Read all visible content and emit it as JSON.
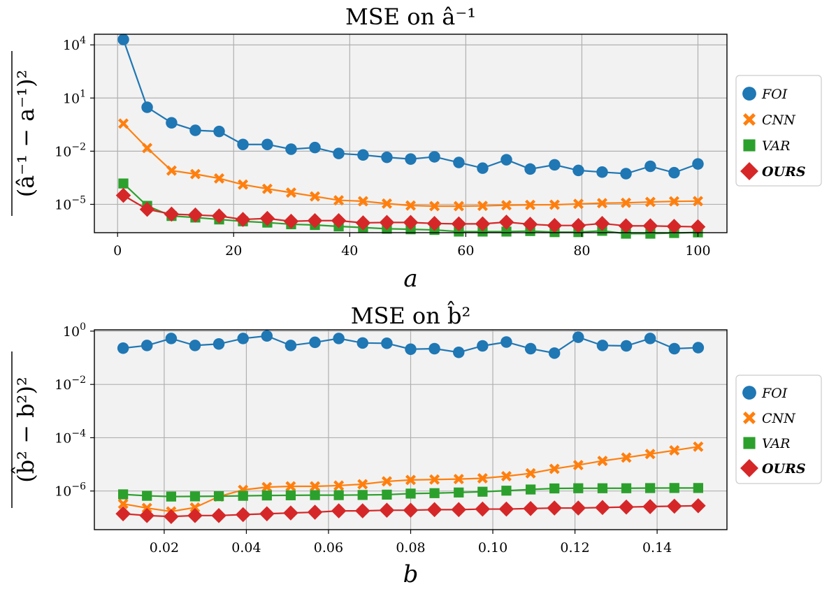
{
  "chart_data": [
    {
      "type": "line",
      "title": "MSE on â⁻¹",
      "ylabel": "(â⁻¹ − a⁻¹)²",
      "xlabel": "a",
      "xlim": [
        -4,
        105
      ],
      "ylim_exp": [
        -6.6,
        4.6
      ],
      "yscale": "log",
      "grid": true,
      "legend_position": "right",
      "xticks": [
        0,
        20,
        40,
        60,
        80,
        100
      ],
      "xtick_labels": [
        "0",
        "20",
        "40",
        "60",
        "80",
        "100"
      ],
      "ytick_exps": [
        4,
        1,
        -2,
        -5
      ],
      "ytick_labels": [
        {
          "base": "10",
          "exp": "4"
        },
        {
          "base": "10",
          "exp": "1"
        },
        {
          "base": "10",
          "exp": "−2"
        },
        {
          "base": "10",
          "exp": "−5"
        }
      ],
      "x": [
        1,
        5.1,
        9.3,
        13.4,
        17.5,
        21.6,
        25.8,
        29.9,
        34,
        38.1,
        42.3,
        46.4,
        50.5,
        54.6,
        58.8,
        62.9,
        67,
        71.1,
        75.3,
        79.4,
        83.5,
        87.6,
        91.8,
        95.9,
        100
      ],
      "series": [
        {
          "name": "FOI",
          "color": "#1f77b4",
          "marker": "circle",
          "values": [
            20000,
            3.0,
            0.4,
            0.15,
            0.13,
            0.024,
            0.024,
            0.013,
            0.016,
            0.0074,
            0.0061,
            0.0045,
            0.0036,
            0.0048,
            0.0023,
            0.0011,
            0.0033,
            0.00098,
            0.0017,
            0.00082,
            0.00066,
            0.00054,
            0.0014,
            0.00061,
            0.0019
          ]
        },
        {
          "name": "CNN",
          "color": "#ff7f0e",
          "marker": "x",
          "values": [
            0.36,
            0.015,
            0.0008,
            0.00051,
            0.00029,
            0.00013,
            7.5e-05,
            4.6e-05,
            2.8e-05,
            1.7e-05,
            1.5e-05,
            1.1e-05,
            8.6e-06,
            7.9e-06,
            7.9e-06,
            8.2e-06,
            8.9e-06,
            9.3e-06,
            9.5e-06,
            1.06e-05,
            1.17e-05,
            1.22e-05,
            1.36e-05,
            1.47e-05,
            1.52e-05
          ]
        },
        {
          "name": "VAR",
          "color": "#2ca02c",
          "marker": "square",
          "values": [
            0.00015,
            8.2e-06,
            2.2e-06,
            1.8e-06,
            1.4e-06,
            1.1e-06,
            9.3e-07,
            7.5e-07,
            6.8e-07,
            5.7e-07,
            4.9e-07,
            4.2e-07,
            3.9e-07,
            3.6e-07,
            2.9e-07,
            2.9e-07,
            2.9e-07,
            3.1e-07,
            2.7e-07,
            2.7e-07,
            3.2e-07,
            2.2e-07,
            2.2e-07,
            2.4e-07,
            2.6e-07
          ]
        },
        {
          "name": "OURS",
          "color": "#d62728",
          "marker": "diamond",
          "bold": true,
          "values": [
            3.2e-05,
            5.2e-06,
            2.8e-06,
            2.5e-06,
            2.2e-06,
            1.4e-06,
            1.6e-06,
            1.1e-06,
            1.2e-06,
            1.2e-06,
            9e-07,
            9.5e-07,
            9.5e-07,
            8.3e-07,
            7.9e-07,
            7.9e-07,
            9.9e-07,
            7.5e-07,
            6.4e-07,
            6.4e-07,
            8.3e-07,
            6.1e-07,
            6.1e-07,
            5.7e-07,
            5.4e-07
          ]
        }
      ]
    },
    {
      "type": "line",
      "title": "MSE on b̂²",
      "ylabel": "(b̂² − b²)²",
      "xlabel": "b",
      "xlim": [
        0.003,
        0.157
      ],
      "ylim_exp": [
        -7.45,
        0.05
      ],
      "yscale": "log",
      "grid": true,
      "legend_position": "right",
      "xticks": [
        0.02,
        0.04,
        0.06,
        0.08,
        0.1,
        0.12,
        0.14
      ],
      "xtick_labels": [
        "0.02",
        "0.04",
        "0.06",
        "0.08",
        "0.10",
        "0.12",
        "0.14"
      ],
      "ytick_exps": [
        0,
        -2,
        -4,
        -6
      ],
      "ytick_labels": [
        {
          "base": "10",
          "exp": "0"
        },
        {
          "base": "10",
          "exp": "−2"
        },
        {
          "base": "10",
          "exp": "−4"
        },
        {
          "base": "10",
          "exp": "−6"
        }
      ],
      "x": [
        0.01,
        0.0158,
        0.0217,
        0.0275,
        0.0333,
        0.0392,
        0.045,
        0.0508,
        0.0567,
        0.0625,
        0.0683,
        0.0742,
        0.08,
        0.0858,
        0.0917,
        0.0975,
        0.1033,
        0.1092,
        0.115,
        0.1208,
        0.1267,
        0.1325,
        0.1383,
        0.1442,
        0.15
      ],
      "series": [
        {
          "name": "FOI",
          "color": "#1f77b4",
          "marker": "circle",
          "values": [
            0.23,
            0.29,
            0.53,
            0.29,
            0.33,
            0.53,
            0.66,
            0.29,
            0.38,
            0.53,
            0.36,
            0.35,
            0.21,
            0.22,
            0.16,
            0.28,
            0.39,
            0.22,
            0.15,
            0.59,
            0.29,
            0.28,
            0.53,
            0.22,
            0.24
          ]
        },
        {
          "name": "CNN",
          "color": "#ff7f0e",
          "marker": "x",
          "values": [
            3.3e-07,
            2.3e-07,
            1.7e-07,
            2.4e-07,
            6.2e-07,
            1.1e-06,
            1.4e-06,
            1.5e-06,
            1.5e-06,
            1.6e-06,
            1.8e-06,
            2.3e-06,
            2.6e-06,
            2.7e-06,
            2.8e-06,
            3e-06,
            3.6e-06,
            4.6e-06,
            6.8e-06,
            9.4e-06,
            1.35e-05,
            1.8e-05,
            2.45e-05,
            3.35e-05,
            4.6e-05
          ]
        },
        {
          "name": "VAR",
          "color": "#2ca02c",
          "marker": "square",
          "values": [
            7.5e-07,
            6.6e-07,
            6.2e-07,
            6.3e-07,
            6.4e-07,
            6.6e-07,
            6.8e-07,
            6.9e-07,
            7e-07,
            7e-07,
            7.1e-07,
            7.3e-07,
            8e-07,
            8.3e-07,
            8.8e-07,
            9.4e-07,
            1.03e-06,
            1.14e-06,
            1.25e-06,
            1.27e-06,
            1.27e-06,
            1.27e-06,
            1.29e-06,
            1.3e-06,
            1.3e-06
          ]
        },
        {
          "name": "OURS",
          "color": "#d62728",
          "marker": "diamond",
          "bold": true,
          "values": [
            1.4e-07,
            1.2e-07,
            1.1e-07,
            1.2e-07,
            1.2e-07,
            1.3e-07,
            1.4e-07,
            1.5e-07,
            1.6e-07,
            1.8e-07,
            1.8e-07,
            1.9e-07,
            1.9e-07,
            2e-07,
            2e-07,
            2.1e-07,
            2.1e-07,
            2.2e-07,
            2.3e-07,
            2.3e-07,
            2.4e-07,
            2.5e-07,
            2.6e-07,
            2.7e-07,
            2.8e-07
          ]
        }
      ]
    }
  ]
}
